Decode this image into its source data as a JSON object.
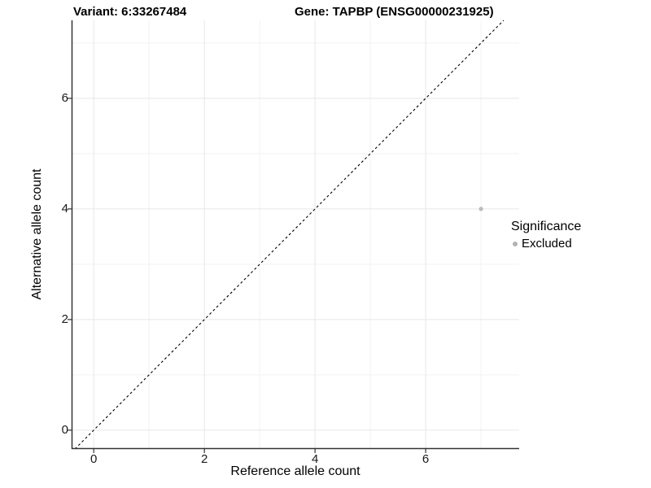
{
  "chart_data": {
    "type": "scatter",
    "titles": {
      "left": "Variant: 6:33267484",
      "right": "Gene: TAPBP (ENSG00000231925)"
    },
    "xlabel": "Reference allele count",
    "ylabel": "Alternative allele count",
    "xlim": [
      -0.4,
      7.69
    ],
    "ylim": [
      -0.34,
      7.41
    ],
    "x_ticks": [
      0,
      2,
      4,
      6
    ],
    "y_ticks": [
      0,
      2,
      4,
      6
    ],
    "x_minor_gridlines": [
      1,
      3,
      5,
      7
    ],
    "y_minor_gridlines": [
      1,
      3,
      5,
      7
    ],
    "grid": {
      "major_color": "#e7e7e7",
      "minor_color": "#f2f2f2"
    },
    "identity_line": {
      "equation": "y = x",
      "style": "dashed",
      "color": "#000000"
    },
    "series": [
      {
        "name": "Excluded",
        "color": "#bcbcbc",
        "points": [
          {
            "x": 7,
            "y": 4
          }
        ]
      }
    ],
    "legend": {
      "title": "Significance",
      "position": "right",
      "entries": [
        {
          "label": "Excluded",
          "color": "#b3b3b3"
        }
      ]
    }
  },
  "colors": {
    "background": "#ffffff",
    "axis_line": "#333333",
    "tick_mark": "#333333",
    "tick_label": "#1a1a1a",
    "point": "#bcbcbc"
  }
}
